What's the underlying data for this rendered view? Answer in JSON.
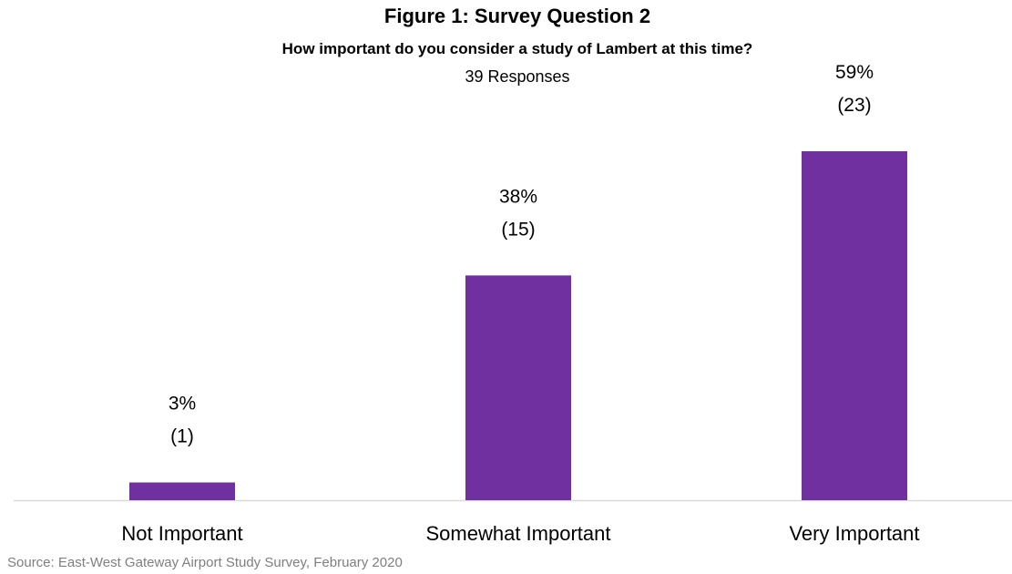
{
  "chart_data": {
    "type": "bar",
    "title": "Figure 1: Survey Question 2",
    "subtitle": "How important do you consider a study of Lambert at this time?",
    "note": "39 Responses",
    "categories": [
      "Not Important",
      "Somewhat Important",
      "Very Important"
    ],
    "values": [
      3,
      38,
      59
    ],
    "counts": [
      1,
      15,
      23
    ],
    "value_labels": [
      "3%",
      "38%",
      "59%"
    ],
    "count_labels": [
      "(1)",
      "(15)",
      "(23)"
    ],
    "ylim": [
      0,
      100
    ],
    "grid": false,
    "legend": "none",
    "bar_color": "#7030a0",
    "axis_color": "#d9d9d9"
  },
  "source": "Source: East-West Gateway Airport Study Survey, February 2020"
}
